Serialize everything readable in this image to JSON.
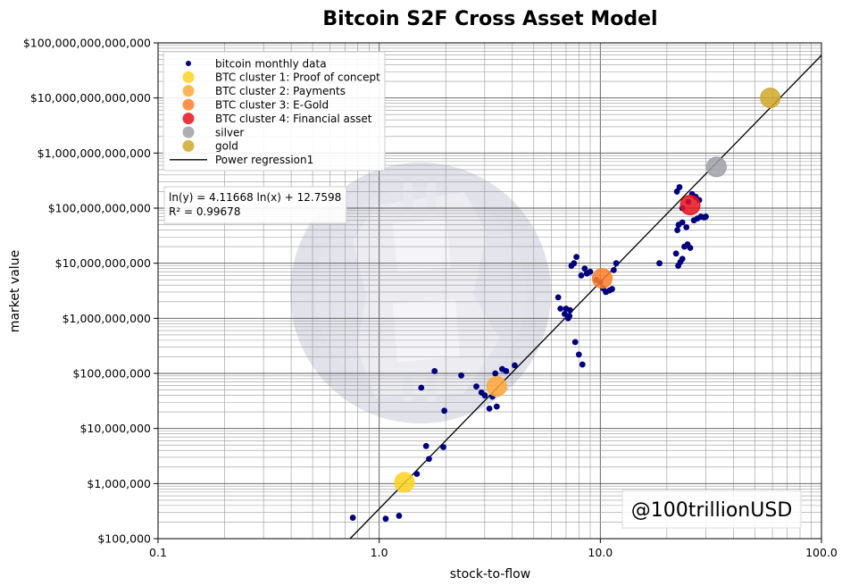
{
  "chart_data": {
    "type": "scatter",
    "title": "Bitcoin S2F Cross Asset Model",
    "xlabel": "stock-to-flow",
    "ylabel": "market value",
    "x_scale": "log",
    "y_scale": "log",
    "xlim": [
      0.1,
      100.0
    ],
    "ylim": [
      100000,
      100000000000000
    ],
    "grid": true,
    "x_ticks": [
      {
        "value": 0.1,
        "label": "0.1"
      },
      {
        "value": 1,
        "label": "1.0"
      },
      {
        "value": 10,
        "label": "10.0"
      },
      {
        "value": 100,
        "label": "100.0"
      }
    ],
    "y_ticks": [
      {
        "value": 100000,
        "label": "$100,000"
      },
      {
        "value": 1000000,
        "label": "$1,000,000"
      },
      {
        "value": 10000000,
        "label": "$10,000,000"
      },
      {
        "value": 100000000,
        "label": "$100,000,000"
      },
      {
        "value": 1000000000,
        "label": "$1,000,000,000"
      },
      {
        "value": 10000000000,
        "label": "$10,000,000,000"
      },
      {
        "value": 100000000000,
        "label": "$100,000,000,000"
      },
      {
        "value": 1000000000000,
        "label": "$1,000,000,000,000"
      },
      {
        "value": 10000000000000,
        "label": "$10,000,000,000,000"
      },
      {
        "value": 100000000000000,
        "label": "$100,000,000,000,000"
      }
    ],
    "legend_position": "top-left",
    "legend": [
      {
        "label": "bitcoin monthly data",
        "kind": "small-dot",
        "color": "#00007f"
      },
      {
        "label": "BTC cluster 1: Proof of concept",
        "kind": "big-dot",
        "color": "#ffd21f"
      },
      {
        "label": "BTC cluster 2: Payments",
        "kind": "big-dot",
        "color": "#ffa83a"
      },
      {
        "label": "BTC cluster 3: E-Gold",
        "kind": "big-dot",
        "color": "#ff7f2a"
      },
      {
        "label": "BTC cluster 4: Financial asset",
        "kind": "big-dot",
        "color": "#e8101e"
      },
      {
        "label": "silver",
        "kind": "big-dot",
        "color": "#a0a0a8"
      },
      {
        "label": "gold",
        "kind": "big-dot",
        "color": "#cfa92a"
      },
      {
        "label": "Power regression1",
        "kind": "line",
        "color": "#000000"
      }
    ],
    "annotation": {
      "line1": "ln(y) = 4.11668 ln(x) + 12.7598",
      "line2": "R² = 0.99678"
    },
    "watermark": "@100trillionUSD",
    "regression": {
      "slope": 4.11668,
      "intercept": 12.7598
    },
    "series": [
      {
        "name": "bitcoin monthly data",
        "color": "#00007f",
        "points": [
          [
            0.76,
            240000
          ],
          [
            1.07,
            230000
          ],
          [
            1.23,
            260000
          ],
          [
            1.48,
            1500000
          ],
          [
            1.63,
            4800000
          ],
          [
            1.68,
            2800000
          ],
          [
            1.95,
            4600000
          ],
          [
            1.55,
            55000000
          ],
          [
            1.78,
            110000000
          ],
          [
            1.97,
            21000000
          ],
          [
            2.35,
            92000000
          ],
          [
            2.75,
            58000000
          ],
          [
            2.9,
            45000000
          ],
          [
            3.0,
            40000000
          ],
          [
            3.15,
            23000000
          ],
          [
            3.25,
            38000000
          ],
          [
            3.4,
            25000000
          ],
          [
            3.35,
            100000000
          ],
          [
            3.6,
            120000000
          ],
          [
            3.75,
            110000000
          ],
          [
            4.1,
            140000000
          ],
          [
            6.45,
            2400000000
          ],
          [
            6.6,
            1500000000
          ],
          [
            6.9,
            1200000000
          ],
          [
            7.0,
            1500000000
          ],
          [
            7.15,
            1000000000
          ],
          [
            7.3,
            1400000000
          ],
          [
            7.25,
            1100000000
          ],
          [
            7.4,
            9000000000
          ],
          [
            7.6,
            10000000000
          ],
          [
            7.8,
            13000000000
          ],
          [
            7.7,
            370000000
          ],
          [
            8.0,
            220000000
          ],
          [
            8.3,
            145000000
          ],
          [
            8.2,
            6000000000
          ],
          [
            8.5,
            8000000000
          ],
          [
            8.7,
            6500000000
          ],
          [
            9.0,
            7000000000
          ],
          [
            9.6,
            5000000000
          ],
          [
            10.0,
            4500000000
          ],
          [
            10.3,
            3500000000
          ],
          [
            10.6,
            3000000000
          ],
          [
            11.0,
            3200000000
          ],
          [
            11.3,
            3400000000
          ],
          [
            11.5,
            7500000000
          ],
          [
            11.8,
            10000000000
          ],
          [
            18.5,
            10000000000
          ],
          [
            22.0,
            15000000000
          ],
          [
            22.5,
            9000000000
          ],
          [
            23.0,
            10500000000
          ],
          [
            23.5,
            12000000000
          ],
          [
            24.0,
            20000000000
          ],
          [
            24.8,
            22000000000
          ],
          [
            25.5,
            19000000000
          ],
          [
            22.3,
            40000000000
          ],
          [
            22.6,
            50000000000
          ],
          [
            23.5,
            55000000000
          ],
          [
            24.5,
            45000000000
          ],
          [
            22.2,
            200000000000
          ],
          [
            22.8,
            240000000000
          ],
          [
            23.5,
            100000000000
          ],
          [
            25.0,
            130000000000
          ],
          [
            26.0,
            180000000000
          ],
          [
            27.0,
            160000000000
          ],
          [
            26.5,
            60000000000
          ],
          [
            27.5,
            65000000000
          ],
          [
            28.5,
            70000000000
          ],
          [
            29.5,
            68000000000
          ],
          [
            28.0,
            140000000000
          ],
          [
            30.0,
            70000000000
          ]
        ]
      },
      {
        "name": "BTC cluster 1: Proof of concept",
        "color": "#ffd21f",
        "points": [
          [
            1.3,
            1050000
          ]
        ]
      },
      {
        "name": "BTC cluster 2: Payments",
        "color": "#ffa83a",
        "points": [
          [
            3.4,
            58000000
          ]
        ]
      },
      {
        "name": "BTC cluster 3: E-Gold",
        "color": "#ff7f2a",
        "points": [
          [
            10.2,
            5300000000
          ]
        ]
      },
      {
        "name": "BTC cluster 4: Financial asset",
        "color": "#e8101e",
        "points": [
          [
            25.5,
            114000000000
          ]
        ]
      },
      {
        "name": "silver",
        "color": "#a0a0a8",
        "points": [
          [
            33.5,
            560000000000
          ]
        ]
      },
      {
        "name": "gold",
        "color": "#cfa92a",
        "points": [
          [
            58.7,
            10000000000000
          ]
        ]
      }
    ]
  }
}
